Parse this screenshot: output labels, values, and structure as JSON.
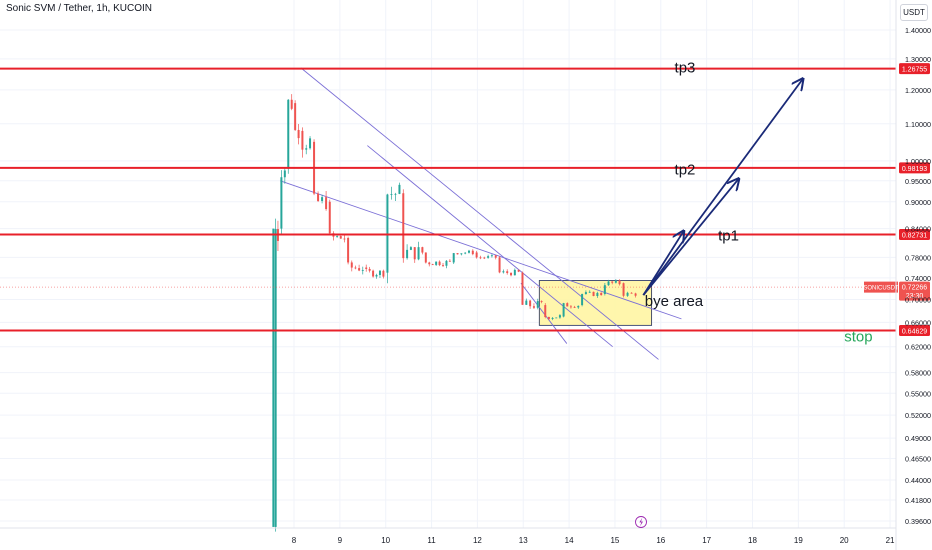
{
  "header": {
    "title": "Sonic SVM / Tether, 1h, KUCOIN",
    "unit": "USDT"
  },
  "colors": {
    "up": "#26a69a",
    "down": "#ef5350",
    "level": "#e8202a",
    "trend": "#7b6fd6",
    "target": "#1a2a78",
    "zone_fill": "#fff59d",
    "zone_stroke": "#1e2a5a",
    "stop": "#26a65b"
  },
  "chart_data": {
    "type": "candlestick",
    "symbol": "SONICUSDT",
    "interval": "1h",
    "exchange": "KUCOIN",
    "x_ticks": [
      "8",
      "9",
      "10",
      "11",
      "12",
      "13",
      "14",
      "15",
      "16",
      "17",
      "18",
      "19",
      "20",
      "21"
    ],
    "y_ticks": [
      "1.40000",
      "1.30000",
      "1.20000",
      "1.10000",
      "1.00000",
      "0.95000",
      "0.90000",
      "0.84000",
      "0.78000",
      "0.74000",
      "0.70000",
      "0.66000",
      "0.62000",
      "0.58000",
      "0.55000",
      "0.52000",
      "0.49000",
      "0.46500",
      "0.44000",
      "0.41800",
      "0.39600"
    ],
    "y_range": [
      0.385,
      1.45
    ],
    "y_scale": "log",
    "levels": [
      {
        "name": "tp3",
        "value": 1.26755,
        "label": "1.26755"
      },
      {
        "name": "tp2",
        "value": 0.98193,
        "label": "0.98193"
      },
      {
        "name": "tp1",
        "value": 0.82731,
        "label": "0.82731"
      },
      {
        "name": "stop",
        "value": 0.64629,
        "label": "0.64629"
      }
    ],
    "current_price": {
      "symbol": "SONICUSDT",
      "value": 0.72266,
      "label": "0.72266",
      "countdown": "23:30"
    },
    "buy_zone": {
      "label": "bye area",
      "from_day": 13.35,
      "to_day": 15.8,
      "low": 0.655,
      "high": 0.735
    },
    "annotations": [
      "tp3",
      "tp2",
      "tp1",
      "bye area",
      "stop"
    ],
    "candles_approx": [
      {
        "day": 7.55,
        "open": 0.39,
        "high": 0.85,
        "low": 0.385,
        "close": 0.84
      },
      {
        "day": 7.65,
        "open": 0.84,
        "high": 1.05,
        "low": 0.82,
        "close": 0.98
      },
      {
        "day": 7.8,
        "open": 0.98,
        "high": 1.24,
        "low": 0.95,
        "close": 1.16
      },
      {
        "day": 7.95,
        "open": 1.16,
        "high": 1.2,
        "low": 1.0,
        "close": 1.08
      },
      {
        "day": 8.1,
        "open": 1.08,
        "high": 1.27,
        "low": 1.02,
        "close": 1.05
      },
      {
        "day": 8.35,
        "open": 1.05,
        "high": 1.06,
        "low": 0.88,
        "close": 0.9
      },
      {
        "day": 8.7,
        "open": 0.9,
        "high": 0.92,
        "low": 0.8,
        "close": 0.82
      },
      {
        "day": 9.1,
        "open": 0.82,
        "high": 0.84,
        "low": 0.74,
        "close": 0.76
      },
      {
        "day": 9.5,
        "open": 0.76,
        "high": 0.8,
        "low": 0.73,
        "close": 0.75
      },
      {
        "day": 9.95,
        "open": 0.75,
        "high": 0.97,
        "low": 0.74,
        "close": 0.92
      },
      {
        "day": 10.3,
        "open": 0.92,
        "high": 0.93,
        "low": 0.78,
        "close": 0.79
      },
      {
        "day": 10.8,
        "open": 0.79,
        "high": 0.81,
        "low": 0.75,
        "close": 0.77
      },
      {
        "day": 11.4,
        "open": 0.77,
        "high": 0.8,
        "low": 0.76,
        "close": 0.79
      },
      {
        "day": 11.9,
        "open": 0.79,
        "high": 0.81,
        "low": 0.77,
        "close": 0.78
      },
      {
        "day": 12.4,
        "open": 0.78,
        "high": 0.79,
        "low": 0.74,
        "close": 0.75
      },
      {
        "day": 12.9,
        "open": 0.75,
        "high": 0.76,
        "low": 0.68,
        "close": 0.69
      },
      {
        "day": 13.4,
        "open": 0.69,
        "high": 0.7,
        "low": 0.655,
        "close": 0.67
      },
      {
        "day": 13.8,
        "open": 0.67,
        "high": 0.7,
        "low": 0.66,
        "close": 0.69
      },
      {
        "day": 14.2,
        "open": 0.69,
        "high": 0.72,
        "low": 0.68,
        "close": 0.71
      },
      {
        "day": 14.7,
        "open": 0.71,
        "high": 0.75,
        "low": 0.7,
        "close": 0.73
      },
      {
        "day": 15.1,
        "open": 0.73,
        "high": 0.74,
        "low": 0.7,
        "close": 0.71
      },
      {
        "day": 15.45,
        "open": 0.71,
        "high": 0.73,
        "low": 0.7,
        "close": 0.72266
      }
    ]
  },
  "footer": {
    "icon": "lightning-icon"
  }
}
